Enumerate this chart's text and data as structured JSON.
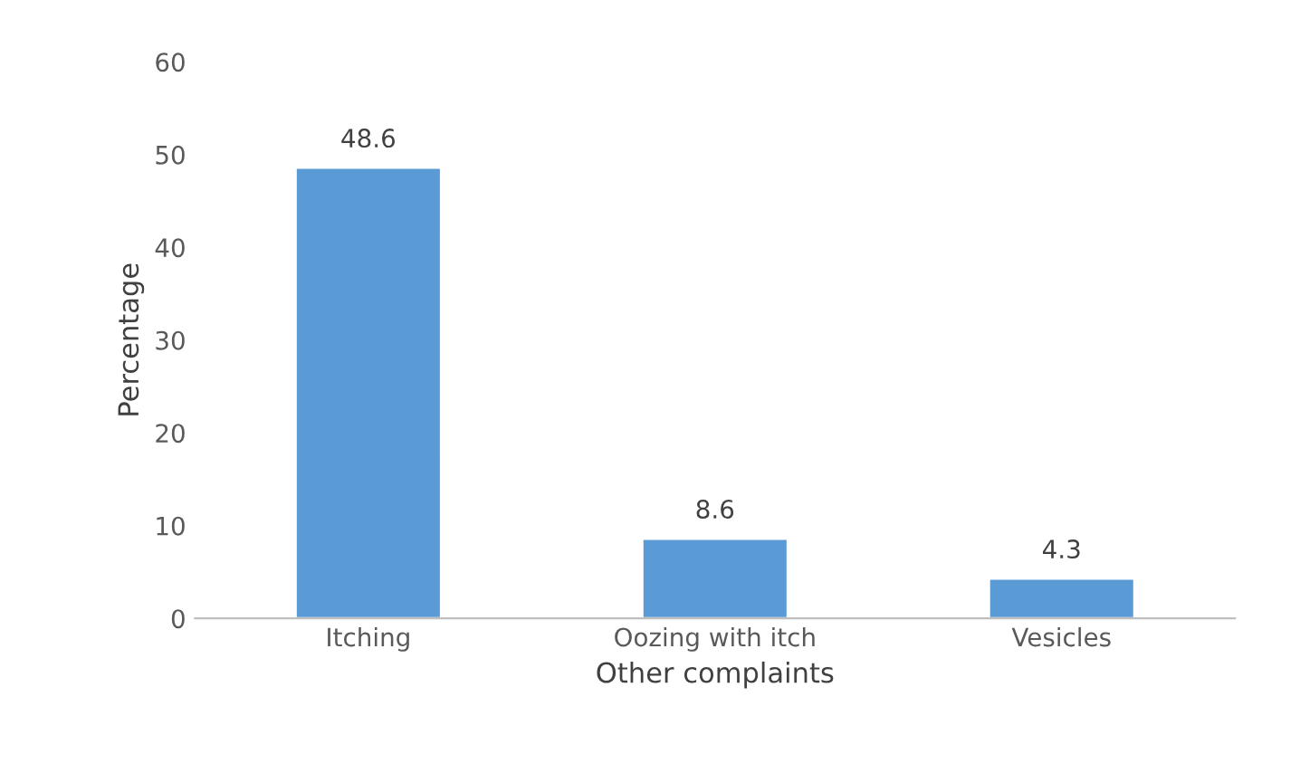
{
  "chart_data": {
    "type": "bar",
    "xlabel": "Other complaints",
    "ylabel": "Percentage",
    "categories": [
      "Itching",
      "Oozing with itch",
      "Vesicles"
    ],
    "values": [
      48.6,
      8.6,
      4.3
    ],
    "color": "#5b9bd5",
    "ylim": [
      0,
      60
    ],
    "yticks": [
      0,
      10,
      20,
      30,
      40,
      50,
      60
    ],
    "grid": false,
    "data_labels": true
  }
}
